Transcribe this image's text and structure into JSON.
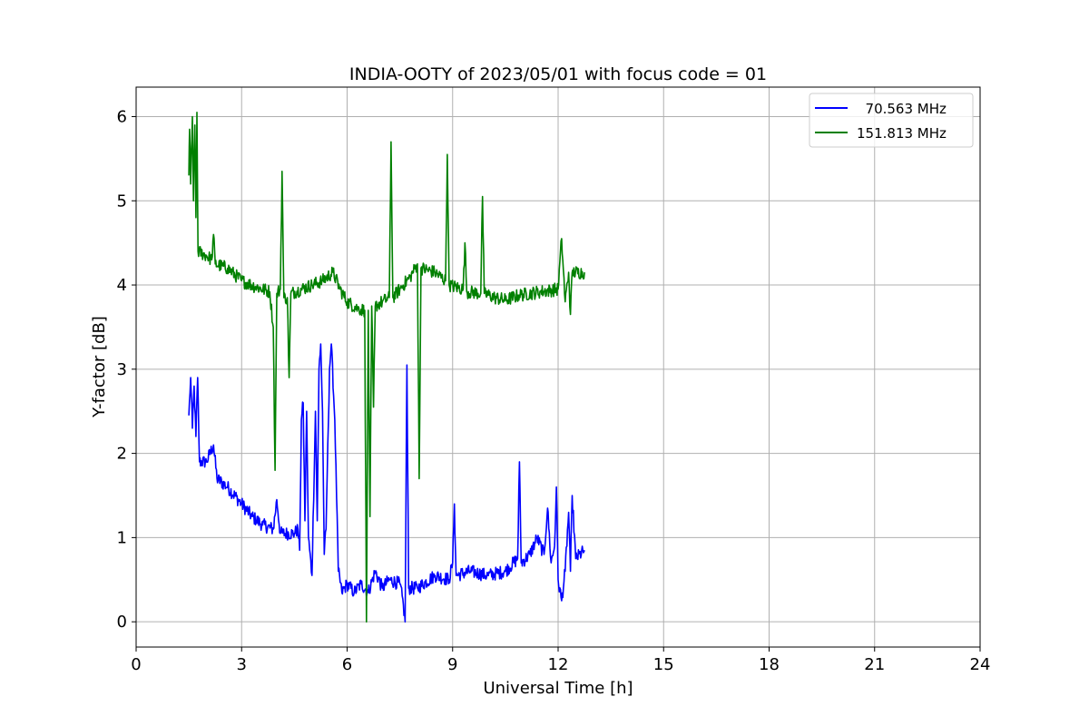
{
  "chart_data": {
    "type": "line",
    "title": "INDIA-OOTY of 2023/05/01 with focus code = 01",
    "xlabel": "Universal Time [h]",
    "ylabel": "Y-factor [dB]",
    "xlim": [
      0,
      24
    ],
    "ylim": [
      -0.3,
      6.35
    ],
    "xticks": [
      0,
      3,
      6,
      9,
      12,
      15,
      18,
      21,
      24
    ],
    "yticks": [
      0,
      1,
      2,
      3,
      4,
      5,
      6
    ],
    "grid": true,
    "legend_position": "top-right",
    "series": [
      {
        "name": "  70.563 MHz",
        "color": "#0000ff",
        "points": [
          [
            1.5,
            2.45
          ],
          [
            1.55,
            2.9
          ],
          [
            1.6,
            2.3
          ],
          [
            1.65,
            2.8
          ],
          [
            1.7,
            2.2
          ],
          [
            1.75,
            2.9
          ],
          [
            1.8,
            1.9
          ],
          [
            2.0,
            1.9
          ],
          [
            2.2,
            2.1
          ],
          [
            2.3,
            1.7
          ],
          [
            2.6,
            1.6
          ],
          [
            3.0,
            1.4
          ],
          [
            3.3,
            1.25
          ],
          [
            3.6,
            1.15
          ],
          [
            3.9,
            1.1
          ],
          [
            4.0,
            1.45
          ],
          [
            4.1,
            1.05
          ],
          [
            4.5,
            1.05
          ],
          [
            4.6,
            1.1
          ],
          [
            4.65,
            0.85
          ],
          [
            4.7,
            2.4
          ],
          [
            4.75,
            2.6
          ],
          [
            4.8,
            1.2
          ],
          [
            4.85,
            2.5
          ],
          [
            4.9,
            1.0
          ],
          [
            5.0,
            0.55
          ],
          [
            5.1,
            2.5
          ],
          [
            5.15,
            1.2
          ],
          [
            5.2,
            3.0
          ],
          [
            5.25,
            3.3
          ],
          [
            5.3,
            2.5
          ],
          [
            5.35,
            0.8
          ],
          [
            5.4,
            1.1
          ],
          [
            5.5,
            3.0
          ],
          [
            5.55,
            3.3
          ],
          [
            5.65,
            2.4
          ],
          [
            5.75,
            0.6
          ],
          [
            5.85,
            0.35
          ],
          [
            6.0,
            0.45
          ],
          [
            6.2,
            0.35
          ],
          [
            6.4,
            0.45
          ],
          [
            6.6,
            0.35
          ],
          [
            6.8,
            0.6
          ],
          [
            7.0,
            0.4
          ],
          [
            7.2,
            0.5
          ],
          [
            7.5,
            0.45
          ],
          [
            7.6,
            0.2
          ],
          [
            7.65,
            0.0
          ],
          [
            7.7,
            3.05
          ],
          [
            7.75,
            0.4
          ],
          [
            8.0,
            0.4
          ],
          [
            8.5,
            0.55
          ],
          [
            8.9,
            0.5
          ],
          [
            9.0,
            0.7
          ],
          [
            9.05,
            1.4
          ],
          [
            9.1,
            0.55
          ],
          [
            9.5,
            0.6
          ],
          [
            10.0,
            0.55
          ],
          [
            10.5,
            0.6
          ],
          [
            10.85,
            0.75
          ],
          [
            10.9,
            1.9
          ],
          [
            10.95,
            0.7
          ],
          [
            11.2,
            0.8
          ],
          [
            11.4,
            1.0
          ],
          [
            11.6,
            0.8
          ],
          [
            11.7,
            1.35
          ],
          [
            11.8,
            0.7
          ],
          [
            11.9,
            0.9
          ],
          [
            11.95,
            1.6
          ],
          [
            12.0,
            0.5
          ],
          [
            12.1,
            0.25
          ],
          [
            12.2,
            0.6
          ],
          [
            12.3,
            1.3
          ],
          [
            12.35,
            0.6
          ],
          [
            12.4,
            1.5
          ],
          [
            12.5,
            0.75
          ],
          [
            12.75,
            0.85
          ]
        ]
      },
      {
        "name": "151.813 MHz",
        "color": "#008000",
        "points": [
          [
            1.5,
            5.3
          ],
          [
            1.52,
            5.85
          ],
          [
            1.55,
            5.2
          ],
          [
            1.6,
            6.0
          ],
          [
            1.63,
            5.0
          ],
          [
            1.67,
            5.9
          ],
          [
            1.7,
            4.8
          ],
          [
            1.73,
            6.05
          ],
          [
            1.76,
            4.4
          ],
          [
            2.0,
            4.35
          ],
          [
            2.15,
            4.3
          ],
          [
            2.2,
            4.6
          ],
          [
            2.25,
            4.25
          ],
          [
            2.6,
            4.2
          ],
          [
            3.0,
            4.05
          ],
          [
            3.4,
            3.98
          ],
          [
            3.8,
            3.92
          ],
          [
            3.9,
            3.5
          ],
          [
            3.95,
            1.8
          ],
          [
            4.0,
            3.9
          ],
          [
            4.1,
            3.95
          ],
          [
            4.15,
            5.35
          ],
          [
            4.2,
            3.85
          ],
          [
            4.3,
            3.85
          ],
          [
            4.35,
            2.9
          ],
          [
            4.4,
            3.9
          ],
          [
            4.7,
            3.95
          ],
          [
            5.0,
            4.0
          ],
          [
            5.3,
            4.05
          ],
          [
            5.6,
            4.15
          ],
          [
            5.8,
            3.95
          ],
          [
            6.0,
            3.8
          ],
          [
            6.3,
            3.72
          ],
          [
            6.5,
            3.7
          ],
          [
            6.55,
            0.0
          ],
          [
            6.6,
            3.7
          ],
          [
            6.65,
            1.25
          ],
          [
            6.7,
            3.75
          ],
          [
            6.75,
            2.55
          ],
          [
            6.8,
            3.75
          ],
          [
            7.0,
            3.8
          ],
          [
            7.2,
            3.85
          ],
          [
            7.25,
            5.7
          ],
          [
            7.3,
            3.85
          ],
          [
            7.5,
            3.95
          ],
          [
            7.8,
            4.1
          ],
          [
            8.0,
            4.25
          ],
          [
            8.05,
            1.7
          ],
          [
            8.1,
            4.2
          ],
          [
            8.5,
            4.15
          ],
          [
            8.8,
            4.05
          ],
          [
            8.85,
            5.55
          ],
          [
            8.9,
            4.0
          ],
          [
            9.3,
            3.95
          ],
          [
            9.35,
            4.5
          ],
          [
            9.4,
            3.92
          ],
          [
            9.8,
            3.9
          ],
          [
            9.85,
            5.05
          ],
          [
            9.9,
            3.9
          ],
          [
            10.2,
            3.85
          ],
          [
            10.5,
            3.82
          ],
          [
            10.9,
            3.88
          ],
          [
            11.5,
            3.92
          ],
          [
            12.0,
            3.95
          ],
          [
            12.1,
            4.55
          ],
          [
            12.2,
            3.8
          ],
          [
            12.3,
            4.15
          ],
          [
            12.35,
            3.65
          ],
          [
            12.4,
            4.15
          ],
          [
            12.75,
            4.15
          ]
        ]
      }
    ]
  }
}
